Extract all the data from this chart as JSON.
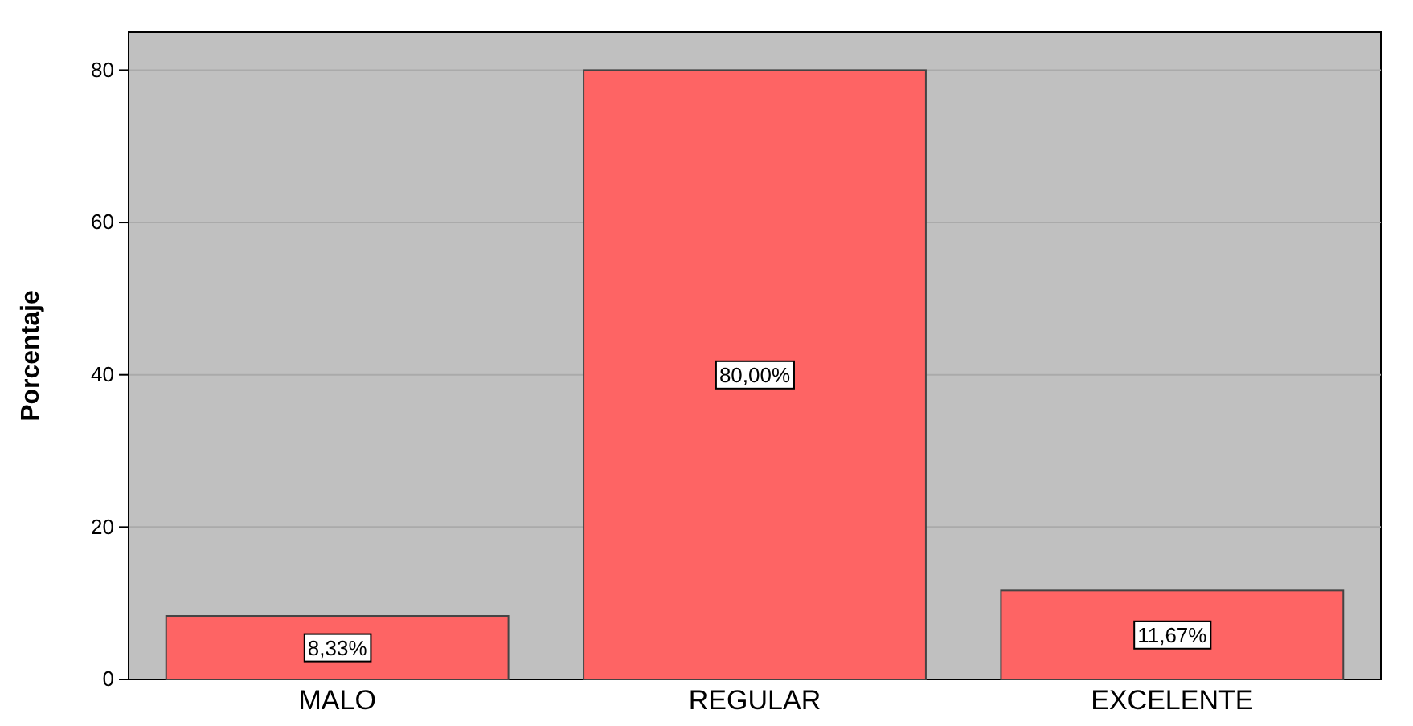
{
  "chart_data": {
    "type": "bar",
    "ylabel": "Porcentaje",
    "categories": [
      "MALO",
      "REGULAR",
      "EXCELENTE"
    ],
    "values": [
      8.33,
      80,
      11.67
    ],
    "color": "#fe6464",
    "value_labels": [
      "8,33%",
      "80,00%",
      "11,67%"
    ],
    "ylim": [
      0,
      85
    ],
    "yticks": [
      0,
      20,
      40,
      60,
      80
    ],
    "grid": "y"
  }
}
